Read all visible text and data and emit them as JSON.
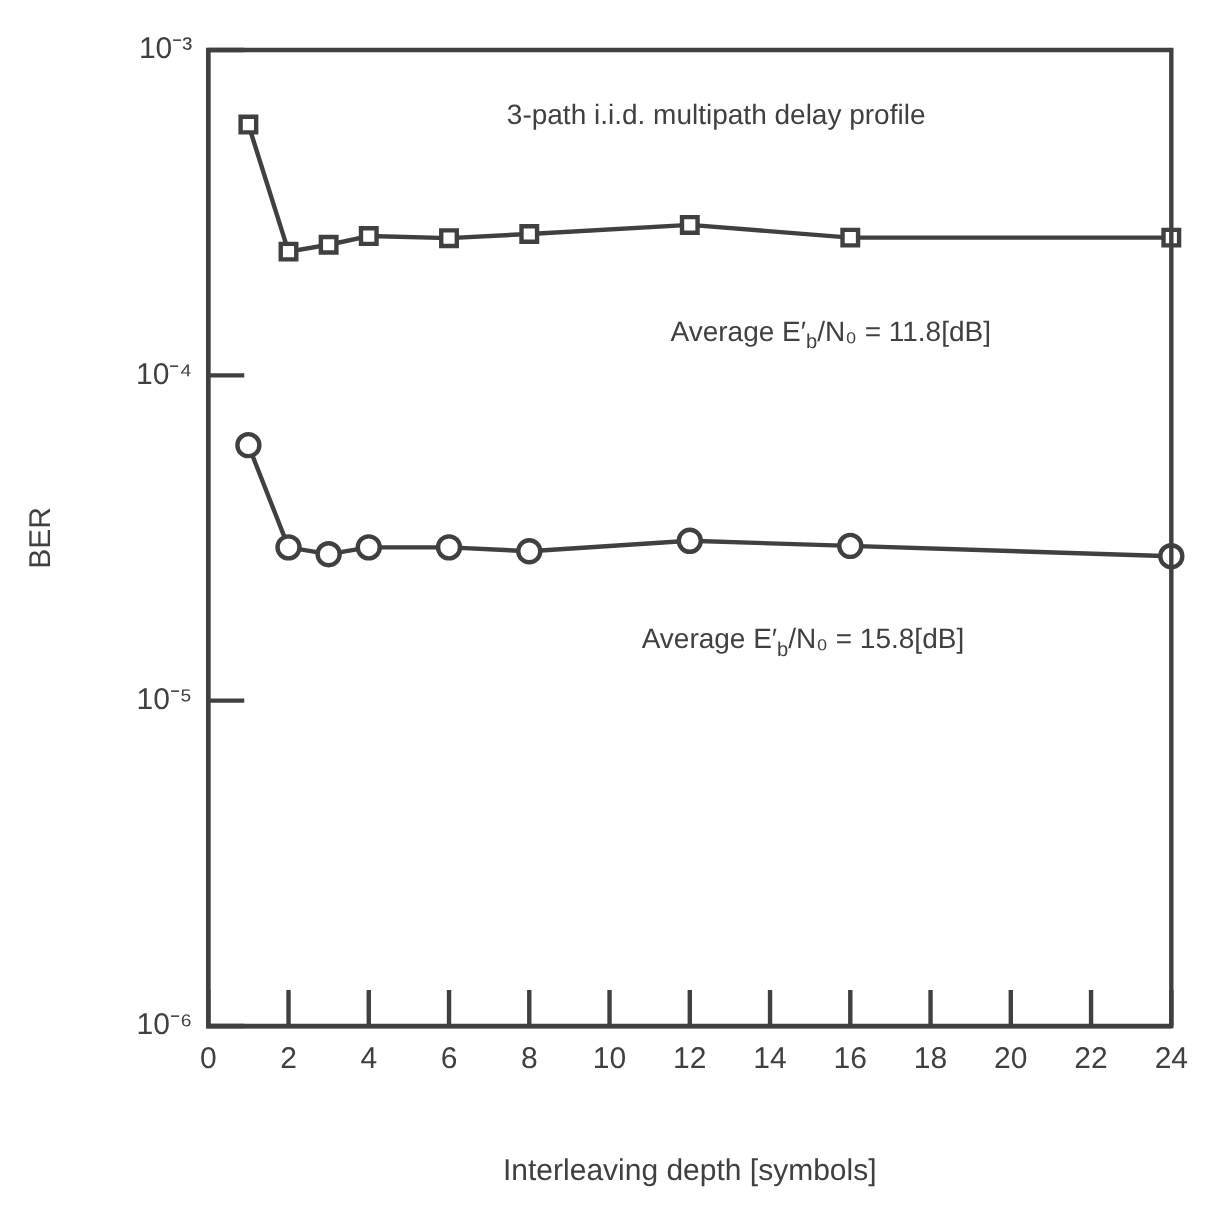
{
  "chart_data": {
    "type": "line",
    "xlabel": "Interleaving depth [symbols]",
    "ylabel": "BER",
    "log": "y",
    "grid": false,
    "legend": false,
    "line_style": "solid",
    "annotations": [
      "3-path i.i.d. multipath delay profile",
      "Average E′$_{b}$/N₀ = 11.8[dB]",
      "Average E′$_{b}$/N₀ = 15.8[dB]"
    ],
    "x": [
      1,
      2,
      3,
      4,
      6,
      8,
      12,
      16,
      24
    ],
    "xlim": [
      0,
      24
    ],
    "xticks": [
      0,
      2,
      4,
      6,
      8,
      10,
      12,
      14,
      16,
      18,
      20,
      22,
      24
    ],
    "ylim": [
      1e-06,
      0.001
    ],
    "yticks": [
      {
        "value": 1e-06,
        "label": "10⁻⁶"
      },
      {
        "value": 1e-05,
        "label": "10⁻⁵"
      },
      {
        "value": 0.0001,
        "label": "10⁻⁴"
      },
      {
        "value": 0.001,
        "label": "10⁻³"
      }
    ],
    "series": [
      {
        "color": "#404040",
        "marker": "square",
        "values": [
          0.00059,
          0.00024,
          0.000252,
          0.000268,
          0.000264,
          0.000272,
          0.00029,
          0.000265,
          0.000265
        ]
      },
      {
        "color": "#404040",
        "marker": "circle",
        "values": [
          6.1e-05,
          2.96e-05,
          2.82e-05,
          2.96e-05,
          2.96e-05,
          2.88e-05,
          3.1e-05,
          2.99e-05,
          2.78e-05
        ]
      }
    ]
  }
}
